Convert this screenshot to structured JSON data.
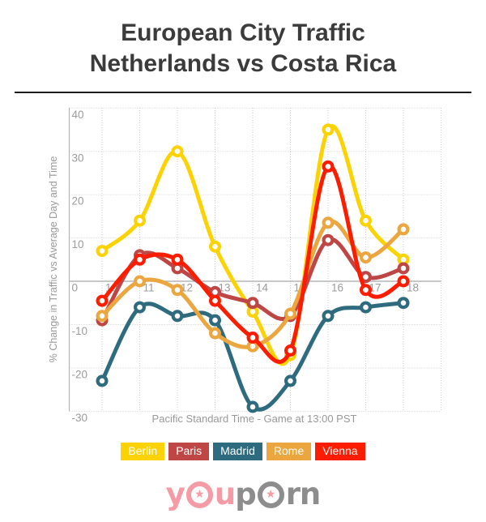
{
  "header": {
    "title_line1": "European City Traffic",
    "title_line2": "Netherlands vs Costa Rica"
  },
  "chart_data": {
    "type": "line",
    "title": "European City Traffic Netherlands vs Costa Rica",
    "x": [
      10,
      11,
      12,
      13,
      14,
      15,
      16,
      17,
      18
    ],
    "xticks": [
      10,
      11,
      12,
      13,
      14,
      15,
      16,
      17,
      18
    ],
    "yticks": [
      40,
      30,
      20,
      10,
      0,
      -10,
      -20,
      -30
    ],
    "ylim": [
      -30,
      40
    ],
    "xlabel": "Pacific Standard Time - Game at 13:00 PST",
    "ylabel": "% Change in Traffic vs Average Day and Time",
    "grid": "dotted",
    "legend_position": "bottom",
    "series": [
      {
        "name": "Berlin",
        "color": "#fbd304",
        "values": [
          7,
          14,
          30,
          8,
          -7,
          -17,
          35,
          14,
          5
        ]
      },
      {
        "name": "Paris",
        "color": "#be4745",
        "values": [
          -9,
          6,
          3,
          -2.5,
          -5,
          -8,
          9.5,
          1,
          3
        ]
      },
      {
        "name": "Madrid",
        "color": "#2f6b7e",
        "values": [
          -23,
          -6,
          -8,
          -9,
          -29,
          -23,
          -8,
          -6,
          -5
        ]
      },
      {
        "name": "Rome",
        "color": "#eba63f",
        "values": [
          -8,
          0,
          -2,
          -12,
          -15,
          -7.5,
          13.5,
          5.5,
          12
        ]
      },
      {
        "name": "Vienna",
        "color": "#fc1d00",
        "values": [
          -4.5,
          5,
          5,
          -4.5,
          -13,
          -16,
          26.5,
          -2,
          0
        ]
      }
    ]
  },
  "colors": {
    "tick_label": "#9b9b9b",
    "grid_dotted": "#cdcdcd",
    "zero_line": "#a8a8a8",
    "axis_line": "#b5b5b5",
    "caption_text": "#999999",
    "title_text": "#3b3b3b"
  },
  "logo": {
    "y": "y",
    "u": "u",
    "p": "p",
    "rn": "rn",
    "star": "★",
    "pink": "#f49ba5",
    "gray": "#8d8d8d"
  }
}
